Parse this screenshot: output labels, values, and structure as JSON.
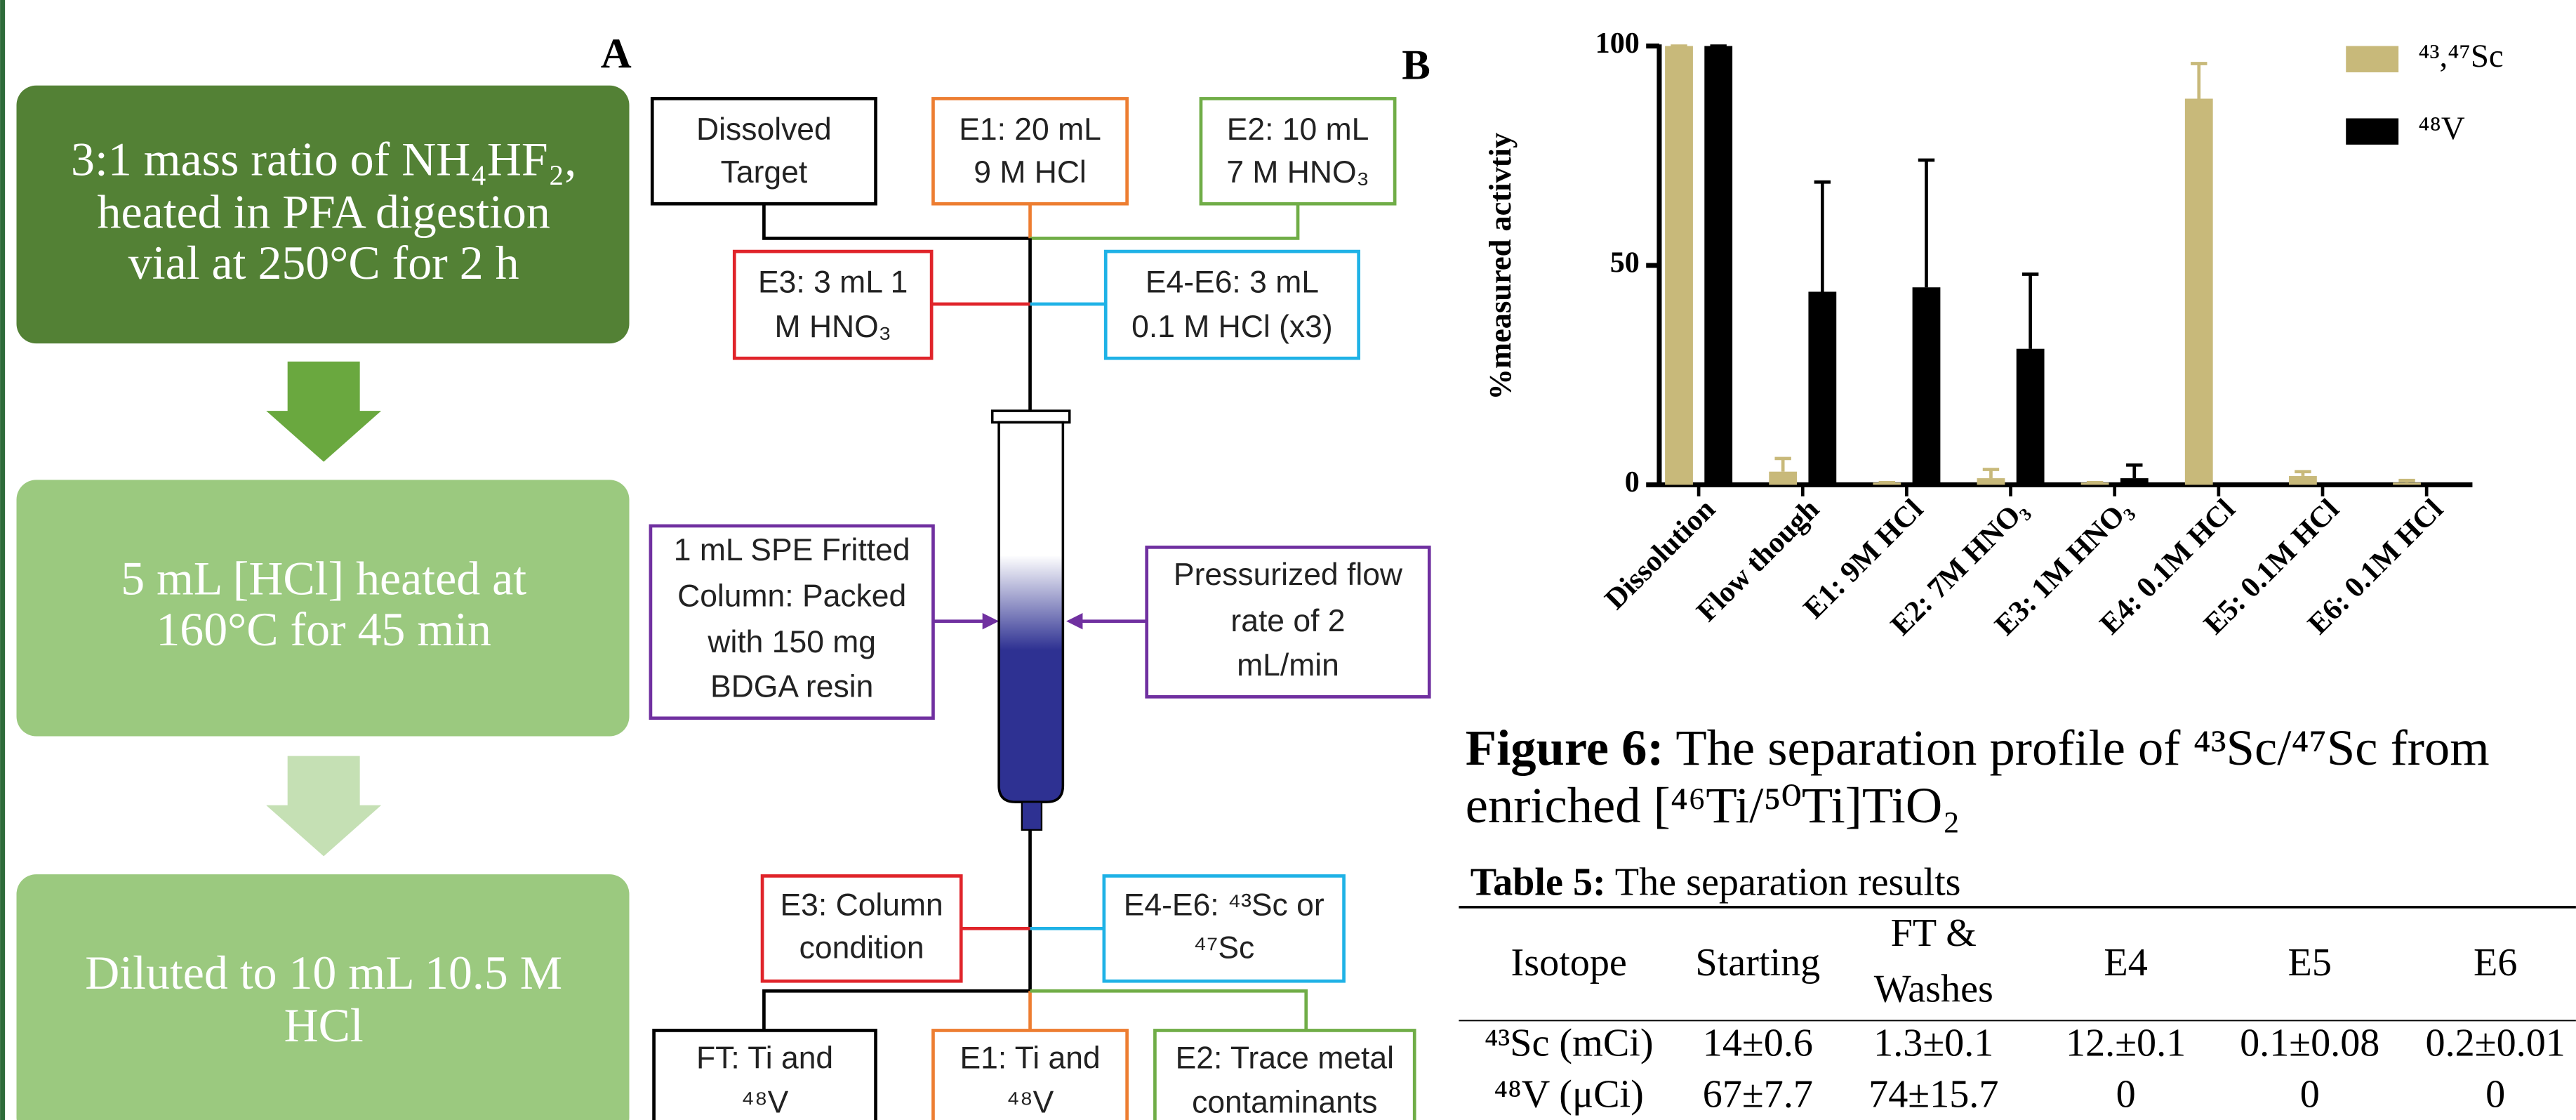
{
  "panel_labels": {
    "a": "A",
    "b": "B"
  },
  "flow": {
    "steps": [
      {
        "lines": [
          "3:1 mass ratio of NH₄HF₂,",
          "heated in PFA digestion",
          "vial at 250°C for 2 h"
        ]
      },
      {
        "lines": [
          "5 mL [HCl] heated at",
          "160°C for 45 min"
        ]
      },
      {
        "lines": [
          "Diluted to 10 mL 10.5 M",
          "HCl"
        ]
      }
    ]
  },
  "diagram": {
    "boxes": [
      {
        "lines": [
          "Dissolved",
          "Target"
        ]
      },
      {
        "lines": [
          "E1: 20 mL",
          "9 M  HCl"
        ]
      },
      {
        "lines": [
          "E2: 10 mL",
          "7 M  HNO₃"
        ]
      },
      {
        "lines": [
          "E3: 3 mL 1",
          "M  HNO₃"
        ]
      },
      {
        "lines": [
          "E4-E6: 3 mL",
          "0.1 M  HCl (x3)"
        ]
      },
      {
        "lines": [
          "1 mL SPE Fritted",
          "Column: Packed",
          "with 150 mg",
          "BDGA resin"
        ]
      },
      {
        "lines": [
          "Pressurized flow",
          "rate of 2",
          "mL/min"
        ]
      },
      {
        "lines": [
          "E3: Column",
          "condition"
        ]
      },
      {
        "lines": [
          "E4-E6: ⁴³Sc or",
          "⁴⁷Sc"
        ]
      },
      {
        "lines": [
          "FT: Ti and",
          "⁴⁸V"
        ]
      },
      {
        "lines": [
          "E1: Ti and",
          "⁴⁸V"
        ]
      },
      {
        "lines": [
          "E2: Trace metal",
          "contaminants"
        ]
      }
    ]
  },
  "chart_data": {
    "type": "bar",
    "y_label": "%measured activtiy",
    "categories": [
      "Dissolution",
      "Flow though",
      "E1: 9M HCl",
      "E2: 7M HNO₃",
      "E3: 1M HNO₃",
      "E4: 0.1M HCl",
      "E5: 0.1M HCl",
      "E6: 0.1M HCl"
    ],
    "series": [
      {
        "name": "⁴³,⁴⁷Sc",
        "color": "#c8b97a",
        "values": [
          100,
          3,
          0.5,
          1.5,
          0.5,
          88,
          2,
          0.5
        ],
        "errors": [
          0,
          3,
          0,
          2,
          0,
          8,
          1,
          0.5
        ]
      },
      {
        "name": "⁴⁸V",
        "color": "#000000",
        "values": [
          100,
          44,
          45,
          31,
          1.5,
          0,
          0,
          0
        ],
        "errors": [
          0,
          25,
          29,
          17,
          3,
          0,
          0,
          0
        ]
      }
    ],
    "ylim": [
      0,
      100
    ],
    "yticks": [
      0,
      50,
      100
    ],
    "legend": "upper right"
  },
  "figure_caption": {
    "label": "Figure 6:",
    "lines": [
      " The separation profile of ⁴³Sc/⁴⁷Sc from",
      "enriched [⁴⁶Ti/⁵⁰Ti]TiO₂"
    ]
  },
  "table": {
    "caption": {
      "label": "Table 5:",
      "text": " The separation results"
    },
    "header": [
      "Isotope",
      "Starting",
      [
        "FT &",
        "Washes"
      ],
      "E4",
      "E5",
      "E6"
    ],
    "rows": [
      [
        "⁴³Sc (mCi)",
        "14±0.6",
        "1.3±0.1",
        "12.±0.1",
        "0.1±0.08",
        "0.2±0.01"
      ],
      [
        "⁴⁸V (μCi)",
        "67±7.7",
        "74±15.7",
        "0",
        "0",
        "0"
      ]
    ]
  }
}
